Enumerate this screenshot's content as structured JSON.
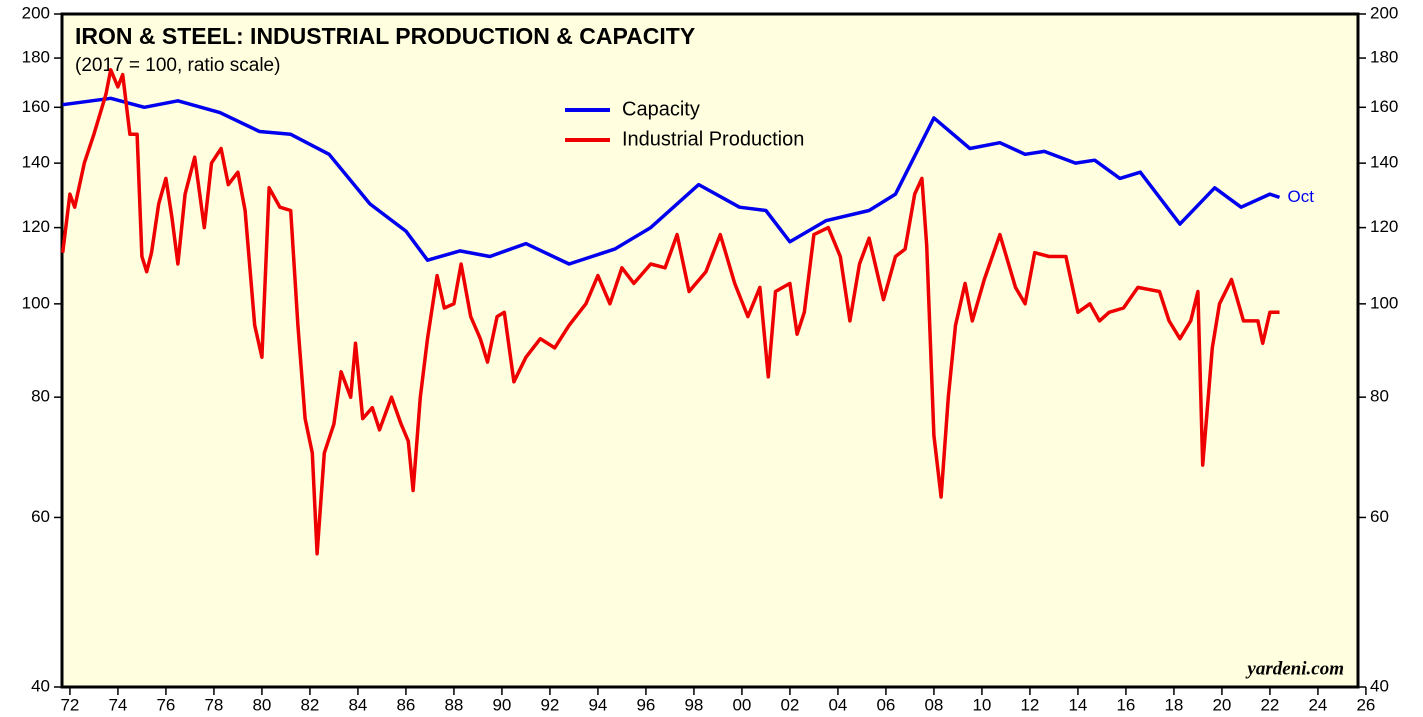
{
  "chart_data": {
    "type": "line",
    "title": "IRON & STEEL: INDUSTRIAL PRODUCTION & CAPACITY",
    "subtitle": "(2017 = 100, ratio scale)",
    "source": "yardeni.com",
    "annotation": "Oct",
    "log_scale": true,
    "legend": "top-center",
    "xlim": [
      1971.67,
      2025.67
    ],
    "ylim": [
      40,
      200
    ],
    "yticks": [
      40,
      60,
      80,
      100,
      120,
      140,
      160,
      180,
      200
    ],
    "xticks": [
      {
        "value": 1972,
        "label": "72"
      },
      {
        "value": 1974,
        "label": "74"
      },
      {
        "value": 1976,
        "label": "76"
      },
      {
        "value": 1978,
        "label": "78"
      },
      {
        "value": 1980,
        "label": "80"
      },
      {
        "value": 1982,
        "label": "82"
      },
      {
        "value": 1984,
        "label": "84"
      },
      {
        "value": 1986,
        "label": "86"
      },
      {
        "value": 1988,
        "label": "88"
      },
      {
        "value": 1990,
        "label": "90"
      },
      {
        "value": 1992,
        "label": "92"
      },
      {
        "value": 1994,
        "label": "94"
      },
      {
        "value": 1996,
        "label": "96"
      },
      {
        "value": 1998,
        "label": "98"
      },
      {
        "value": 2000,
        "label": "00"
      },
      {
        "value": 2002,
        "label": "02"
      },
      {
        "value": 2004,
        "label": "04"
      },
      {
        "value": 2006,
        "label": "06"
      },
      {
        "value": 2008,
        "label": "08"
      },
      {
        "value": 2010,
        "label": "10"
      },
      {
        "value": 2012,
        "label": "12"
      },
      {
        "value": 2014,
        "label": "14"
      },
      {
        "value": 2016,
        "label": "16"
      },
      {
        "value": 2018,
        "label": "18"
      },
      {
        "value": 2020,
        "label": "20"
      },
      {
        "value": 2022,
        "label": "22"
      },
      {
        "value": 2024,
        "label": "24"
      },
      {
        "value": 2026,
        "label": "26"
      }
    ],
    "series": [
      {
        "name": "Capacity",
        "color": "#0000ee",
        "x": [
          1971.7,
          1973.7,
          1975.1,
          1976.5,
          1978.25,
          1979.9,
          1981.2,
          1982.8,
          1984.5,
          1986.0,
          1986.9,
          1988.25,
          1989.5,
          1991.0,
          1992.8,
          1994.7,
          1996.2,
          1998.2,
          1999.9,
          2001.0,
          2002.0,
          2003.5,
          2005.3,
          2006.4,
          2008.0,
          2009.5,
          2010.75,
          2011.8,
          2012.6,
          2013.9,
          2014.7,
          2015.75,
          2016.6,
          2018.25,
          2019.7,
          2020.8,
          2022.0,
          2022.4
        ],
        "values": [
          161,
          163.5,
          160,
          162.5,
          158,
          151,
          150,
          143,
          127,
          119,
          111,
          113.5,
          112,
          115.5,
          110,
          114,
          120,
          133,
          126,
          125,
          116,
          122,
          125,
          130,
          156,
          145,
          147,
          143,
          144,
          140,
          141,
          135,
          137,
          121,
          132,
          126,
          130,
          129
        ]
      },
      {
        "name": "Industrial Production",
        "color": "#ee0000",
        "x": [
          1971.7,
          1972.0,
          1972.2,
          1972.6,
          1973.0,
          1973.5,
          1973.7,
          1974.0,
          1974.2,
          1974.5,
          1974.8,
          1975.0,
          1975.2,
          1975.4,
          1975.7,
          1976.0,
          1976.25,
          1976.5,
          1976.8,
          1977.2,
          1977.6,
          1977.9,
          1978.3,
          1978.6,
          1979.0,
          1979.3,
          1979.7,
          1980.0,
          1980.3,
          1980.75,
          1981.2,
          1981.5,
          1981.8,
          1982.1,
          1982.3,
          1982.6,
          1983.0,
          1983.3,
          1983.7,
          1983.9,
          1984.2,
          1984.6,
          1984.9,
          1985.4,
          1985.8,
          1986.1,
          1986.3,
          1986.6,
          1986.9,
          1987.3,
          1987.6,
          1988.0,
          1988.3,
          1988.7,
          1989.1,
          1989.4,
          1989.8,
          1990.1,
          1990.5,
          1991.0,
          1991.6,
          1992.2,
          1992.8,
          1993.5,
          1994.0,
          1994.5,
          1995.0,
          1995.5,
          1996.2,
          1996.8,
          1997.3,
          1997.8,
          1998.5,
          1999.1,
          1999.7,
          2000.25,
          2000.75,
          2001.1,
          2001.4,
          2002.0,
          2002.3,
          2002.6,
          2003.0,
          2003.6,
          2004.1,
          2004.5,
          2004.9,
          2005.3,
          2005.9,
          2006.4,
          2006.8,
          2007.2,
          2007.5,
          2007.7,
          2008.0,
          2008.3,
          2008.6,
          2008.9,
          2009.3,
          2009.6,
          2010.1,
          2010.75,
          2011.4,
          2011.8,
          2012.2,
          2012.8,
          2013.5,
          2014.0,
          2014.5,
          2014.9,
          2015.3,
          2015.9,
          2016.5,
          2017.4,
          2017.8,
          2018.25,
          2018.7,
          2019.0,
          2019.2,
          2019.6,
          2019.9,
          2020.4,
          2020.9,
          2021.5,
          2021.7,
          2022.0,
          2022.4
        ],
        "values": [
          113,
          130,
          126,
          140,
          150,
          165,
          175,
          168,
          173,
          150,
          150,
          112,
          108,
          113,
          127,
          135,
          123,
          110,
          130,
          142,
          120,
          140,
          145,
          133,
          137,
          125,
          95,
          88,
          132,
          126,
          125,
          95,
          76,
          70,
          55,
          70,
          75,
          85,
          80,
          91,
          76,
          78,
          74,
          80,
          75,
          72,
          64,
          80,
          92,
          107,
          99,
          100,
          110,
          97,
          92,
          87,
          97,
          98,
          83,
          88,
          92,
          90,
          95,
          100,
          107,
          100,
          109,
          105,
          110,
          109,
          118,
          103,
          108,
          118,
          105,
          97,
          104,
          84,
          103,
          105,
          93,
          98,
          118,
          120,
          112,
          96,
          110,
          117,
          101,
          112,
          114,
          130,
          135,
          115,
          73,
          63,
          80,
          95,
          105,
          96,
          106,
          118,
          104,
          100,
          113,
          112,
          112,
          98,
          100,
          96,
          98,
          99,
          104,
          103,
          96,
          92,
          96,
          103,
          68,
          90,
          100,
          106,
          96,
          96,
          91,
          98,
          98
        ]
      }
    ]
  }
}
